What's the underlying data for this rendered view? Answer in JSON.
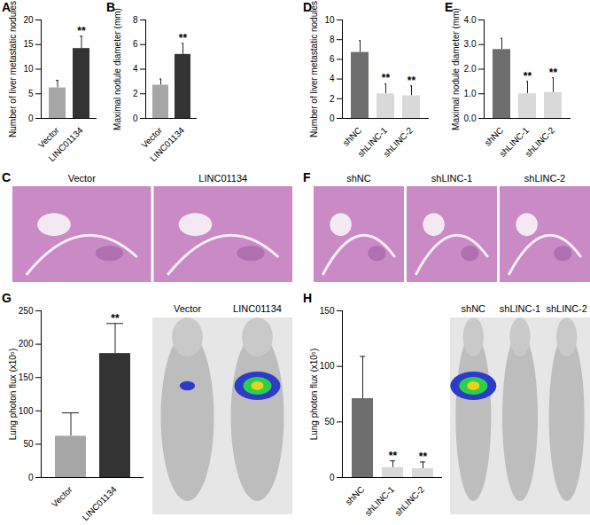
{
  "chart_data": [
    {
      "type": "bar",
      "title": "A",
      "categories": [
        "Vector",
        "LINC01134"
      ],
      "values": [
        6.2,
        14.2
      ],
      "errors": [
        1.5,
        2.5
      ],
      "annotations": [
        null,
        "**"
      ],
      "colors": [
        "#a6a6a6",
        "#333333"
      ],
      "ylabel": "Number of liver metastatic nodules",
      "ylim": [
        0,
        20
      ],
      "yticks": [
        0,
        5,
        10,
        15,
        20
      ]
    },
    {
      "type": "bar",
      "title": "B",
      "categories": [
        "Vector",
        "LINC01134"
      ],
      "values": [
        2.7,
        5.2
      ],
      "errors": [
        0.5,
        0.9
      ],
      "annotations": [
        null,
        "**"
      ],
      "colors": [
        "#a6a6a6",
        "#333333"
      ],
      "ylabel": "Maximal nodule diameter (mm)",
      "ylim": [
        0,
        8
      ],
      "yticks": [
        0,
        2,
        4,
        6,
        8
      ]
    },
    {
      "type": "bar",
      "title": "D",
      "categories": [
        "shNC",
        "shLINC-1",
        "shLINC-2"
      ],
      "values": [
        6.7,
        2.5,
        2.3
      ],
      "errors": [
        1.2,
        1.0,
        1.0
      ],
      "annotations": [
        null,
        "**",
        "**"
      ],
      "colors": [
        "#6e6e6e",
        "#d9d9d9",
        "#d9d9d9"
      ],
      "ylabel": "Number of liver metastatic nodules",
      "ylim": [
        0,
        10
      ],
      "yticks": [
        0,
        2,
        4,
        6,
        8,
        10
      ]
    },
    {
      "type": "bar",
      "title": "E",
      "categories": [
        "shNC",
        "shLINC-1",
        "shLINC-2"
      ],
      "values": [
        2.8,
        1.0,
        1.05
      ],
      "errors": [
        0.45,
        0.5,
        0.6
      ],
      "annotations": [
        null,
        "**",
        "**"
      ],
      "colors": [
        "#6e6e6e",
        "#d9d9d9",
        "#d9d9d9"
      ],
      "ylabel": "Maximal nodule diameter (mm)",
      "ylim": [
        0,
        4
      ],
      "yticks": [
        0,
        1,
        2,
        3,
        4
      ]
    },
    {
      "type": "image",
      "title": "C",
      "image_labels": [
        "Vector",
        "LINC01134"
      ]
    },
    {
      "type": "image",
      "title": "F",
      "image_labels": [
        "shNC",
        "shLINC-1",
        "shLINC-2"
      ]
    },
    {
      "type": "bar",
      "title": "G",
      "categories": [
        "Vector",
        "LINC01134"
      ],
      "values": [
        62,
        186
      ],
      "errors": [
        35,
        45
      ],
      "annotations": [
        null,
        "**"
      ],
      "colors": [
        "#a6a6a6",
        "#333333"
      ],
      "ylabel": "Lung photon flux (x10⁵)",
      "ylim": [
        0,
        250
      ],
      "yticks": [
        0,
        50,
        100,
        150,
        200,
        250
      ],
      "image_labels": [
        "Vector",
        "LINC01134"
      ]
    },
    {
      "type": "bar",
      "title": "H",
      "categories": [
        "shNC",
        "shLINC-1",
        "shLINC-2"
      ],
      "values": [
        71,
        9,
        8
      ],
      "errors": [
        38,
        6,
        6
      ],
      "annotations": [
        null,
        "**",
        "**"
      ],
      "colors": [
        "#6e6e6e",
        "#d9d9d9",
        "#d9d9d9"
      ],
      "ylabel": "Lung photon flux (x10⁵)",
      "ylim": [
        0,
        150
      ],
      "yticks": [
        0,
        50,
        100,
        150
      ],
      "image_labels": [
        "shNC",
        "shLINC-1",
        "shLINC-2"
      ]
    }
  ]
}
